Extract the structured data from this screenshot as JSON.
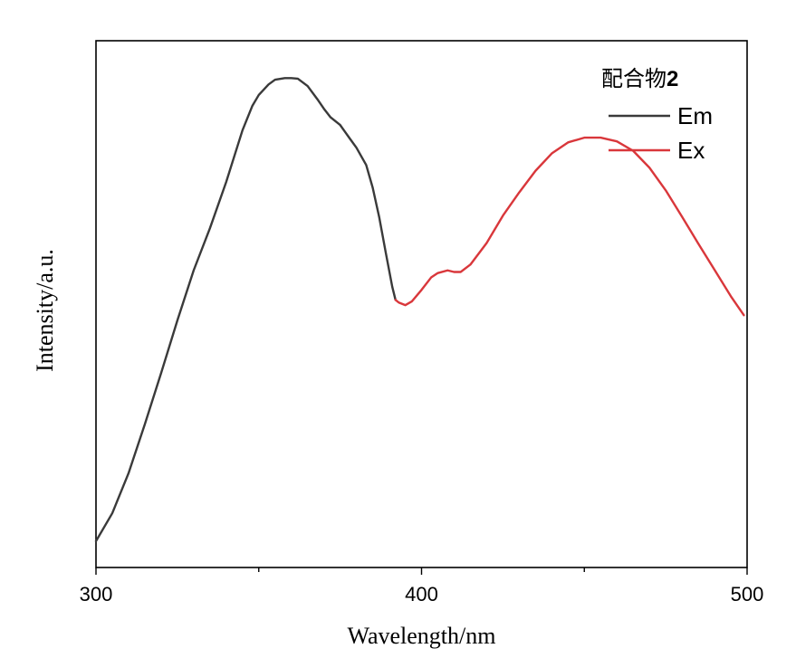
{
  "chart_data": {
    "type": "line",
    "title": "",
    "xlabel": "Wavelength/nm",
    "ylabel": "Intensity/a.u.",
    "xlim": [
      300,
      500
    ],
    "ylim": [
      0,
      100
    ],
    "x_ticks": [
      300,
      400,
      500
    ],
    "x_tick_labels": [
      "300",
      "400",
      "500"
    ],
    "grid": false,
    "legend": {
      "placement": "top-right",
      "title": "配合物",
      "title_bold_suffix": "2"
    },
    "series": [
      {
        "name": "Em",
        "color": "#3a3a3a",
        "points": [
          [
            300,
            5.0
          ],
          [
            305,
            10.3
          ],
          [
            310,
            17.9
          ],
          [
            315,
            27.2
          ],
          [
            320,
            36.9
          ],
          [
            325,
            46.9
          ],
          [
            330,
            56.4
          ],
          [
            335,
            64.4
          ],
          [
            340,
            73.2
          ],
          [
            345,
            83.0
          ],
          [
            348,
            87.6
          ],
          [
            350,
            89.7
          ],
          [
            353,
            91.7
          ],
          [
            355,
            92.6
          ],
          [
            358,
            92.9
          ],
          [
            360,
            92.9
          ],
          [
            362,
            92.8
          ],
          [
            365,
            91.4
          ],
          [
            368,
            88.9
          ],
          [
            370,
            87.1
          ],
          [
            372,
            85.5
          ],
          [
            375,
            84.0
          ],
          [
            378,
            81.4
          ],
          [
            380,
            79.7
          ],
          [
            383,
            76.4
          ],
          [
            385,
            72.1
          ],
          [
            387,
            66.5
          ],
          [
            389,
            59.8
          ],
          [
            391,
            53.3
          ],
          [
            392,
            50.8
          ]
        ]
      },
      {
        "name": "Ex",
        "color": "#d9373b",
        "points": [
          [
            392,
            50.8
          ],
          [
            393,
            50.3
          ],
          [
            395,
            49.8
          ],
          [
            397,
            50.5
          ],
          [
            400,
            52.7
          ],
          [
            403,
            55.1
          ],
          [
            405,
            55.9
          ],
          [
            408,
            56.4
          ],
          [
            410,
            56.1
          ],
          [
            412,
            56.1
          ],
          [
            415,
            57.5
          ],
          [
            420,
            61.6
          ],
          [
            425,
            66.8
          ],
          [
            430,
            71.2
          ],
          [
            435,
            75.3
          ],
          [
            440,
            78.6
          ],
          [
            445,
            80.7
          ],
          [
            450,
            81.6
          ],
          [
            455,
            81.6
          ],
          [
            460,
            80.9
          ],
          [
            465,
            79.1
          ],
          [
            470,
            75.9
          ],
          [
            475,
            71.6
          ],
          [
            480,
            66.6
          ],
          [
            485,
            61.5
          ],
          [
            490,
            56.5
          ],
          [
            495,
            51.5
          ],
          [
            499,
            47.9
          ]
        ]
      }
    ]
  }
}
